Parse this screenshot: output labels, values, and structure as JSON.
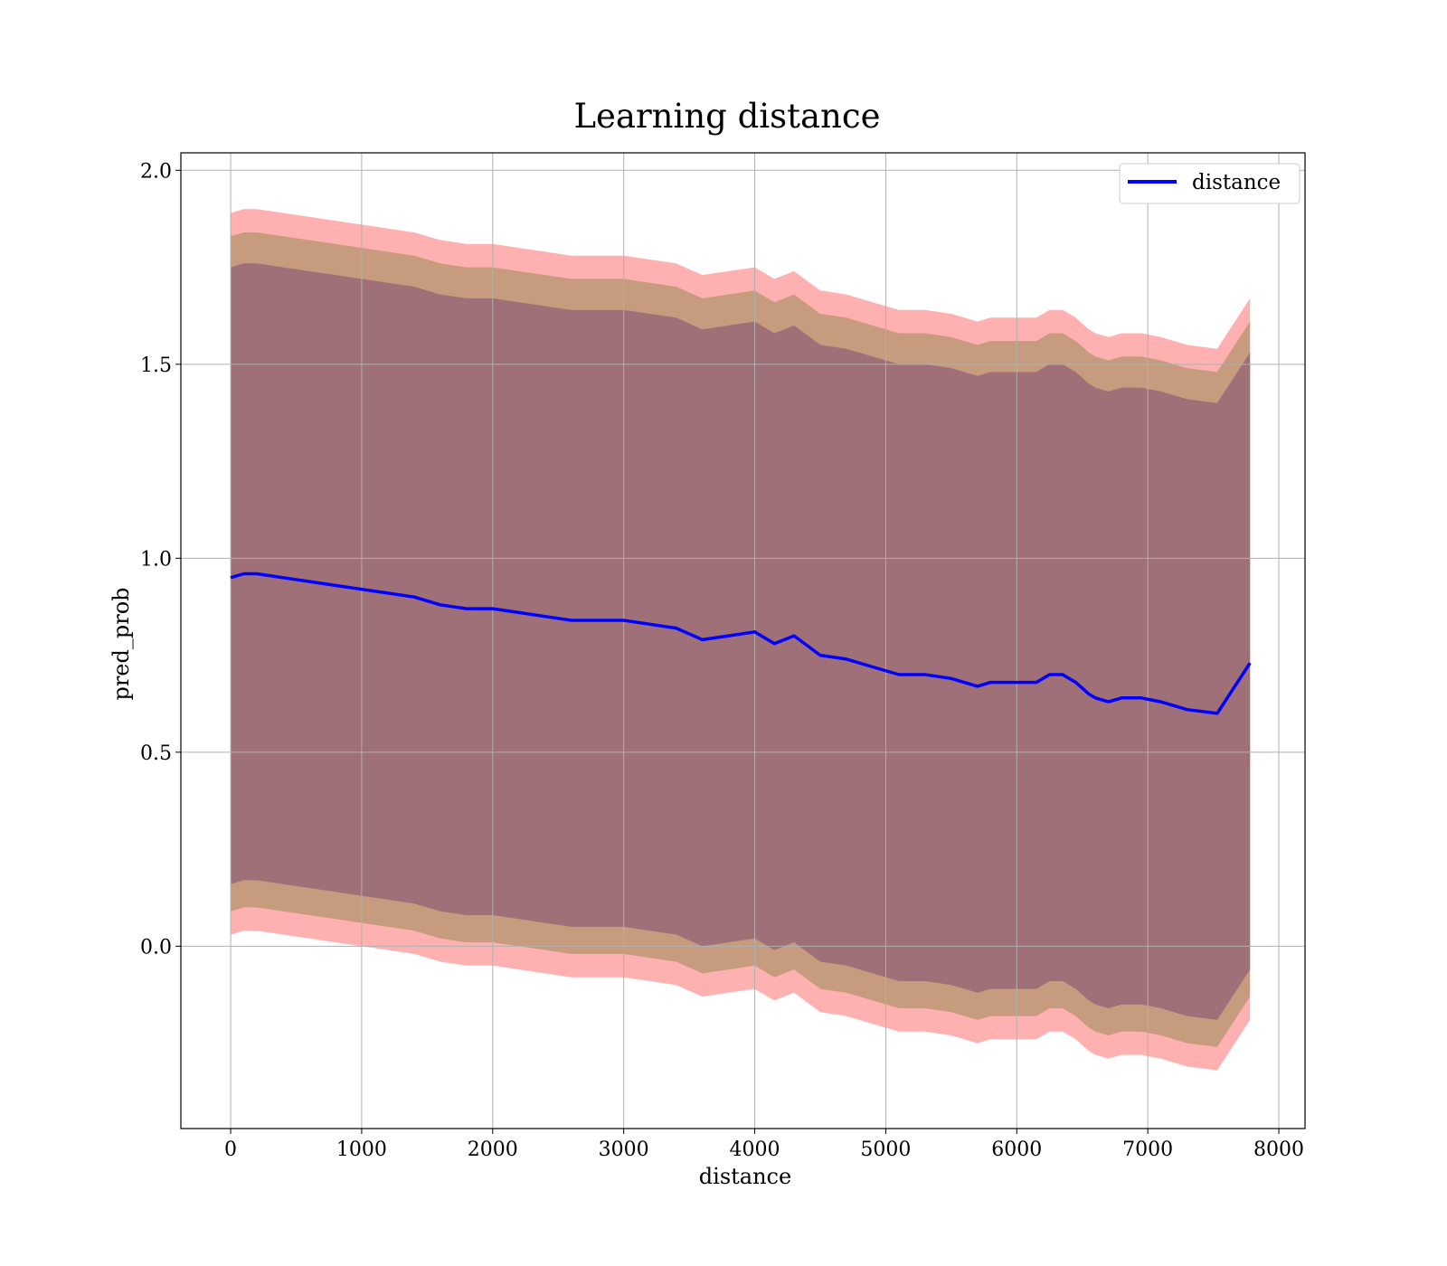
{
  "chart_data": {
    "type": "line",
    "title": "Learning distance",
    "xlabel": "distance",
    "ylabel": "pred_prob",
    "xlim": [
      -380,
      8200
    ],
    "ylim": [
      -0.47,
      2.045
    ],
    "xticks": [
      0,
      1000,
      2000,
      3000,
      4000,
      5000,
      6000,
      7000,
      8000
    ],
    "xtick_labels": [
      "0",
      "1000",
      "2000",
      "3000",
      "4000",
      "5000",
      "6000",
      "7000",
      "8000"
    ],
    "yticks": [
      0.0,
      0.5,
      1.0,
      1.5,
      2.0
    ],
    "ytick_labels": [
      "0.0",
      "0.5",
      "1.0",
      "1.5",
      "2.0"
    ],
    "grid": true,
    "legend": {
      "position": "top-right",
      "entries": [
        "distance"
      ]
    },
    "colors": {
      "line": "#0000ff",
      "band_outer": "#ffb1b1",
      "band_middle": "#c79b7d",
      "band_inner": "#a07078"
    },
    "x": [
      0,
      100,
      200,
      400,
      600,
      800,
      1000,
      1200,
      1400,
      1600,
      1800,
      2000,
      2200,
      2400,
      2600,
      2800,
      3000,
      3200,
      3400,
      3600,
      3800,
      4000,
      4150,
      4300,
      4500,
      4700,
      4900,
      5100,
      5300,
      5500,
      5700,
      5800,
      6000,
      6150,
      6250,
      6350,
      6450,
      6550,
      6600,
      6700,
      6800,
      6950,
      7100,
      7300,
      7530,
      7780
    ],
    "series": [
      {
        "name": "distance",
        "values": [
          0.95,
          0.96,
          0.96,
          0.95,
          0.94,
          0.93,
          0.92,
          0.91,
          0.9,
          0.88,
          0.87,
          0.87,
          0.86,
          0.85,
          0.84,
          0.84,
          0.84,
          0.83,
          0.82,
          0.79,
          0.8,
          0.81,
          0.78,
          0.8,
          0.75,
          0.74,
          0.72,
          0.7,
          0.7,
          0.69,
          0.67,
          0.68,
          0.68,
          0.68,
          0.7,
          0.7,
          0.68,
          0.65,
          0.64,
          0.63,
          0.64,
          0.64,
          0.63,
          0.61,
          0.6,
          0.73
        ]
      }
    ],
    "bands": {
      "outer": {
        "lower_offset": 0.92,
        "upper_offset": 0.94
      },
      "middle": {
        "lower_offset": 0.86,
        "upper_offset": 0.88
      },
      "inner": {
        "lower_offset": 0.79,
        "upper_offset": 0.8
      }
    }
  }
}
